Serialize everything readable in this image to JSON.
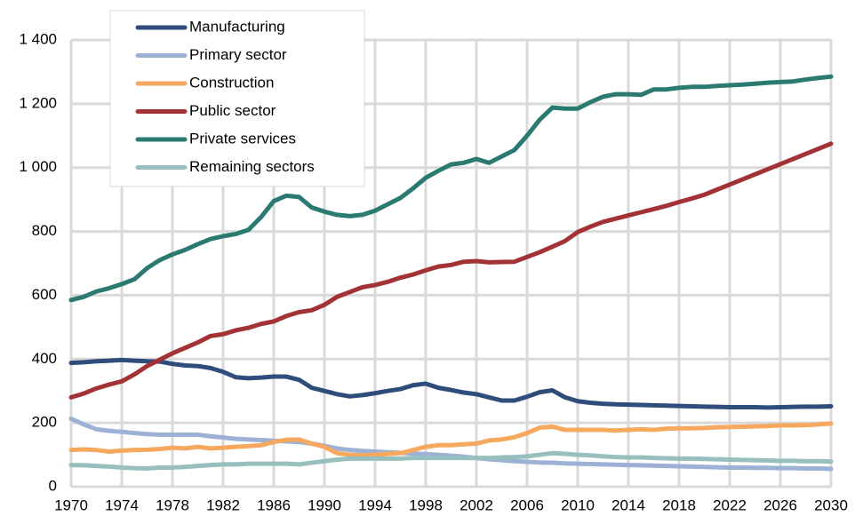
{
  "chart_data": {
    "type": "line",
    "x": [
      1970,
      1971,
      1972,
      1973,
      1974,
      1975,
      1976,
      1977,
      1978,
      1979,
      1980,
      1981,
      1982,
      1983,
      1984,
      1985,
      1986,
      1987,
      1988,
      1989,
      1990,
      1991,
      1992,
      1993,
      1994,
      1995,
      1996,
      1997,
      1998,
      1999,
      2000,
      2001,
      2002,
      2003,
      2004,
      2005,
      2006,
      2007,
      2008,
      2009,
      2010,
      2011,
      2012,
      2013,
      2014,
      2015,
      2016,
      2017,
      2018,
      2019,
      2020,
      2021,
      2022,
      2023,
      2024,
      2025,
      2026,
      2027,
      2028,
      2029,
      2030
    ],
    "xlim": [
      1970,
      2030
    ],
    "xticks": [
      1970,
      1974,
      1978,
      1982,
      1986,
      1990,
      1994,
      1998,
      2002,
      2006,
      2010,
      2014,
      2018,
      2022,
      2026,
      2030
    ],
    "ylim": [
      0,
      1400
    ],
    "yticks": [
      0,
      200,
      400,
      600,
      800,
      {
        "value": 1000,
        "label": "1 000"
      },
      {
        "value": 1200,
        "label": "1 200"
      },
      {
        "value": 1400,
        "label": "1 400"
      }
    ],
    "grid": true,
    "legend": "top-left",
    "series": [
      {
        "name": "Manufacturing",
        "color": "#2e4d7b",
        "values": [
          388,
          390,
          393,
          395,
          397,
          395,
          393,
          392,
          385,
          380,
          378,
          372,
          360,
          343,
          340,
          342,
          345,
          345,
          335,
          310,
          300,
          290,
          283,
          287,
          293,
          300,
          306,
          318,
          323,
          310,
          303,
          295,
          290,
          280,
          270,
          270,
          282,
          296,
          302,
          280,
          268,
          263,
          260,
          258,
          257,
          256,
          255,
          254,
          253,
          252,
          251,
          250,
          249,
          249,
          249,
          248,
          249,
          250,
          251,
          251,
          252
        ]
      },
      {
        "name": "Primary sector",
        "color": "#9db0d6",
        "values": [
          213,
          195,
          180,
          175,
          172,
          168,
          165,
          163,
          163,
          163,
          163,
          158,
          154,
          150,
          148,
          146,
          144,
          142,
          140,
          135,
          128,
          120,
          115,
          112,
          110,
          108,
          106,
          104,
          102,
          100,
          97,
          94,
          90,
          86,
          83,
          80,
          78,
          76,
          75,
          73,
          72,
          71,
          70,
          69,
          68,
          67,
          66,
          65,
          64,
          63,
          62,
          61,
          60,
          60,
          59,
          59,
          58,
          58,
          57,
          57,
          56
        ]
      },
      {
        "name": "Construction",
        "color": "#f6a85e",
        "values": [
          115,
          117,
          115,
          110,
          113,
          115,
          116,
          118,
          122,
          120,
          125,
          120,
          122,
          125,
          127,
          130,
          140,
          147,
          148,
          135,
          125,
          105,
          100,
          98,
          100,
          103,
          105,
          115,
          125,
          130,
          130,
          133,
          135,
          145,
          148,
          155,
          168,
          185,
          188,
          178,
          178,
          178,
          178,
          176,
          178,
          180,
          178,
          182,
          183,
          183,
          184,
          186,
          187,
          188,
          189,
          190,
          192,
          192,
          193,
          195,
          198
        ]
      },
      {
        "name": "Public sector",
        "color": "#a33236",
        "values": [
          280,
          292,
          308,
          320,
          330,
          352,
          378,
          398,
          418,
          435,
          452,
          472,
          478,
          490,
          498,
          510,
          518,
          535,
          547,
          553,
          570,
          595,
          610,
          625,
          632,
          642,
          655,
          665,
          678,
          690,
          695,
          705,
          707,
          703,
          704,
          705,
          720,
          735,
          752,
          770,
          798,
          815,
          830,
          840,
          850,
          860,
          870,
          880,
          892,
          903,
          915,
          931,
          947,
          963,
          979,
          995,
          1011,
          1027,
          1043,
          1059,
          1075
        ]
      },
      {
        "name": "Private services",
        "color": "#2a7a72",
        "values": [
          585,
          595,
          612,
          622,
          635,
          650,
          685,
          710,
          728,
          742,
          760,
          776,
          785,
          792,
          805,
          845,
          895,
          912,
          908,
          875,
          862,
          852,
          848,
          852,
          865,
          885,
          905,
          935,
          968,
          990,
          1010,
          1015,
          1027,
          1015,
          1035,
          1055,
          1100,
          1150,
          1188,
          1185,
          1185,
          1205,
          1222,
          1230,
          1230,
          1228,
          1245,
          1245,
          1250,
          1253,
          1253,
          1256,
          1258,
          1260,
          1263,
          1266,
          1268,
          1270,
          1276,
          1281,
          1285
        ]
      },
      {
        "name": "Remaining sectors",
        "color": "#97bfbd",
        "values": [
          68,
          67,
          65,
          63,
          60,
          58,
          57,
          60,
          60,
          62,
          65,
          68,
          70,
          70,
          72,
          72,
          72,
          72,
          70,
          75,
          80,
          85,
          88,
          88,
          88,
          88,
          88,
          90,
          90,
          90,
          90,
          90,
          90,
          90,
          92,
          93,
          95,
          100,
          105,
          103,
          100,
          98,
          95,
          93,
          92,
          92,
          90,
          89,
          88,
          88,
          87,
          86,
          85,
          84,
          83,
          82,
          81,
          81,
          80,
          80,
          79
        ]
      }
    ]
  }
}
